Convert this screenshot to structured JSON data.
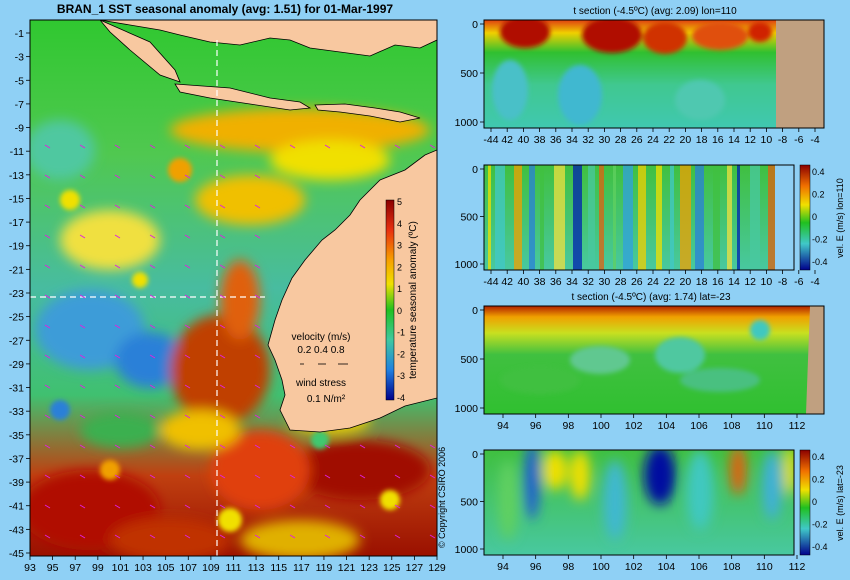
{
  "chart_data": [
    {
      "type": "heatmap",
      "title": "BRAN_1  SST seasonal anomaly  (avg: 1.51) for 01-Mar-1997",
      "x_ticks": [
        "93",
        "95",
        "97",
        "99",
        "101",
        "103",
        "105",
        "107",
        "109",
        "111",
        "113",
        "115",
        "117",
        "119",
        "121",
        "123",
        "125",
        "127",
        "129"
      ],
      "y_ticks": [
        "-1",
        "-3",
        "-5",
        "-7",
        "-9",
        "-11",
        "-13",
        "-15",
        "-17",
        "-19",
        "-21",
        "-23",
        "-25",
        "-27",
        "-29",
        "-31",
        "-33",
        "-35",
        "-37",
        "-39",
        "-41",
        "-43",
        "-45"
      ],
      "colorbar": {
        "label": "temperature seasonal anomaly (ºC)",
        "ticks": [
          "5",
          "4",
          "3",
          "2",
          "1",
          "0",
          "-1",
          "-2",
          "-3",
          "-4"
        ]
      },
      "velocity_legend": {
        "title": "velocity (m/s)",
        "values": "0.2 0.4 0.8"
      },
      "wind_legend": {
        "title": "wind stress",
        "value": "0.1 N/m²"
      },
      "section_markers": {
        "lon": 110,
        "lat": -23
      },
      "copyright": "© Copyright CSIRO 2006"
    },
    {
      "type": "heatmap",
      "title": "t section (-4.5ºC) (avg: 2.09) lon=110",
      "x_ticks": [
        "-44",
        "42",
        "40",
        "38",
        "36",
        "34",
        "32",
        "30",
        "28",
        "26",
        "24",
        "22",
        "20",
        "18",
        "16",
        "14",
        "12",
        "10",
        "-8",
        "-6",
        "-4"
      ],
      "y_ticks": [
        "0",
        "500",
        "1000"
      ],
      "x_range": [
        -45,
        -3
      ],
      "y_range": [
        0,
        1100
      ]
    },
    {
      "type": "heatmap",
      "title": "",
      "x_ticks": [
        "-44",
        "42",
        "40",
        "38",
        "36",
        "34",
        "32",
        "30",
        "28",
        "26",
        "24",
        "22",
        "20",
        "18",
        "16",
        "14",
        "12",
        "10",
        "-8",
        "-6",
        "-4"
      ],
      "y_ticks": [
        "0",
        "500",
        "1000"
      ],
      "colorbar": {
        "label": "vel. E (m/s) lon=110",
        "ticks": [
          "0.4",
          "0.2",
          "0",
          "-0.2",
          "-0.4"
        ]
      }
    },
    {
      "type": "heatmap",
      "title": "t section (-4.5ºC) (avg: 1.74) lat=-23",
      "x_ticks": [
        "94",
        "96",
        "98",
        "100",
        "102",
        "104",
        "106",
        "108",
        "110",
        "112"
      ],
      "y_ticks": [
        "0",
        "500",
        "1000"
      ],
      "x_range": [
        93,
        114
      ],
      "y_range": [
        0,
        1100
      ]
    },
    {
      "type": "heatmap",
      "title": "",
      "x_ticks": [
        "94",
        "96",
        "98",
        "100",
        "102",
        "104",
        "106",
        "108",
        "110",
        "112"
      ],
      "y_ticks": [
        "0",
        "500",
        "1000"
      ],
      "colorbar": {
        "label": "vel. E (m/s) lat=-23",
        "ticks": [
          "0.4",
          "0.2",
          "0",
          "-0.2",
          "-0.4"
        ]
      }
    }
  ]
}
